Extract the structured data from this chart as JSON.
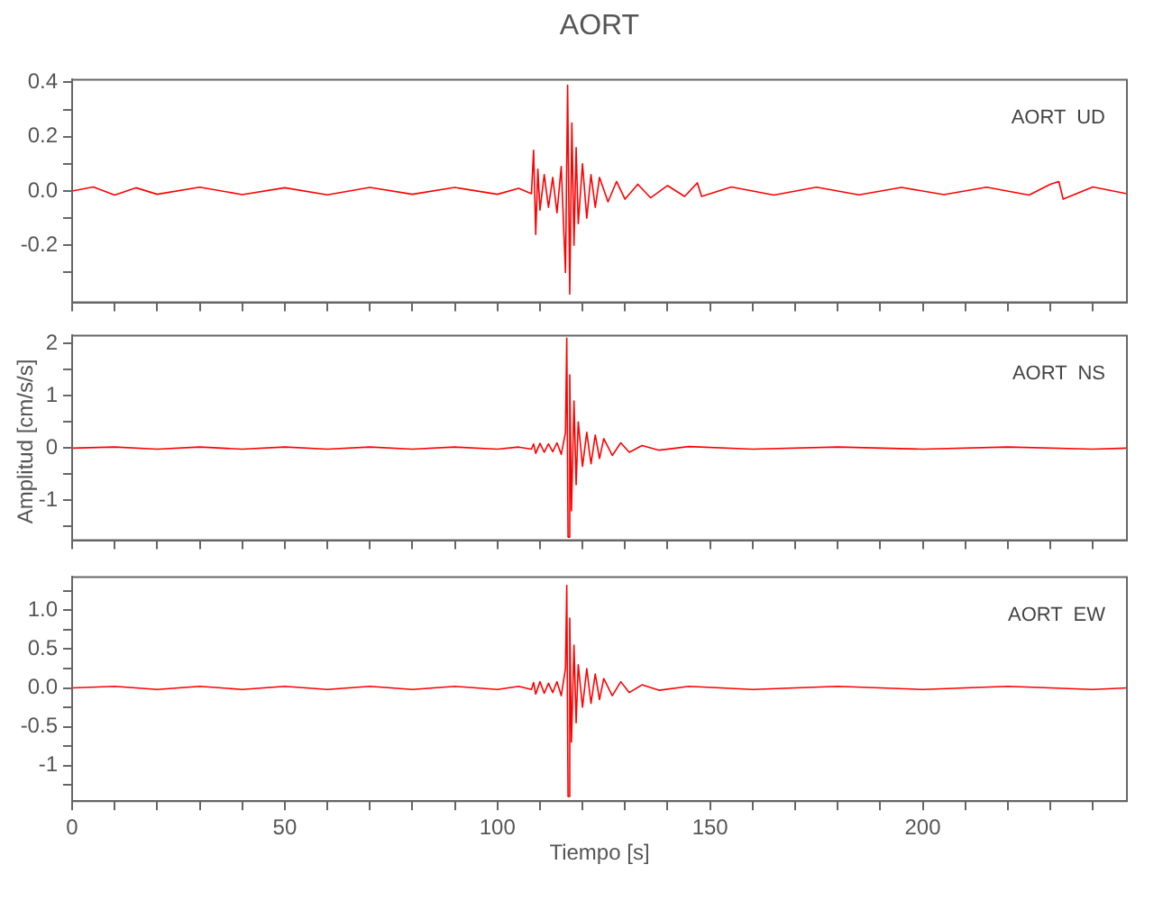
{
  "chart_data": [
    {
      "type": "line",
      "title": "AORT",
      "annotations": [
        "AORT  UD"
      ],
      "tick_labels": "y",
      "legend": false,
      "grid": false,
      "marker": "none",
      "line_style": "solid",
      "x": [
        0,
        5,
        10,
        15,
        20,
        30,
        40,
        50,
        60,
        70,
        80,
        90,
        100,
        105,
        108,
        108.5,
        109,
        109.5,
        110,
        111,
        112,
        113,
        114,
        115,
        116,
        116.5,
        117,
        117.5,
        118,
        118.5,
        119,
        120,
        121,
        122,
        123,
        124,
        126,
        128,
        130,
        133,
        136,
        140,
        144,
        147,
        148,
        155,
        165,
        175,
        185,
        195,
        205,
        215,
        225,
        230,
        232,
        233,
        240,
        248
      ],
      "series": [
        {
          "color": "#ff0000",
          "values": [
            0,
            0.015,
            -0.015,
            0.012,
            -0.012,
            0.014,
            -0.013,
            0.012,
            -0.014,
            0.013,
            -0.012,
            0.013,
            -0.012,
            0.01,
            -0.01,
            0.15,
            -0.16,
            0.08,
            -0.07,
            0.06,
            -0.06,
            0.05,
            -0.08,
            0.09,
            -0.3,
            0.39,
            -0.38,
            0.25,
            -0.2,
            0.16,
            -0.12,
            0.1,
            -0.1,
            0.06,
            -0.06,
            0.05,
            -0.04,
            0.035,
            -0.03,
            0.025,
            -0.025,
            0.02,
            -0.02,
            0.03,
            -0.02,
            0.015,
            -0.015,
            0.014,
            -0.014,
            0.013,
            -0.013,
            0.014,
            -0.015,
            0.025,
            0.035,
            -0.03,
            0.015,
            -0.01
          ]
        }
      ],
      "xlim": [
        0,
        248
      ],
      "xticks": [
        0,
        {
          "value": 10,
          "label": null
        },
        {
          "value": 20,
          "label": null
        },
        {
          "value": 30,
          "label": null
        },
        {
          "value": 40,
          "label": null
        },
        50,
        {
          "value": 60,
          "label": null
        },
        {
          "value": 70,
          "label": null
        },
        {
          "value": 80,
          "label": null
        },
        {
          "value": 90,
          "label": null
        },
        100,
        {
          "value": 110,
          "label": null
        },
        {
          "value": 120,
          "label": null
        },
        {
          "value": 130,
          "label": null
        },
        {
          "value": 140,
          "label": null
        },
        150,
        {
          "value": 160,
          "label": null
        },
        {
          "value": 170,
          "label": null
        },
        {
          "value": 180,
          "label": null
        },
        {
          "value": 190,
          "label": null
        },
        200,
        {
          "value": 210,
          "label": null
        },
        {
          "value": 220,
          "label": null
        },
        {
          "value": 230,
          "label": null
        },
        {
          "value": 240,
          "label": null
        }
      ],
      "ylim": [
        -0.41,
        0.41
      ],
      "yticks": [
        {
          "value": -0.3,
          "label": null
        },
        -0.2,
        {
          "value": -0.1,
          "label": null
        },
        {
          "value": 0,
          "label": "0.0"
        },
        {
          "value": 0.1,
          "label": null
        },
        0.2,
        {
          "value": 0.3,
          "label": null
        },
        0.4
      ]
    },
    {
      "type": "line",
      "ylabel": "Amplitud [cm/s/s]",
      "annotations": [
        "AORT  NS"
      ],
      "tick_labels": "y",
      "legend": false,
      "grid": false,
      "marker": "none",
      "line_style": "solid",
      "x": [
        0,
        10,
        20,
        30,
        40,
        50,
        60,
        70,
        80,
        90,
        100,
        105,
        108,
        108.5,
        109,
        110,
        111,
        112,
        113,
        114,
        115,
        116,
        116.3,
        116.6,
        117,
        117.4,
        118,
        118.5,
        119,
        120,
        121,
        122,
        123,
        124,
        125,
        127,
        129,
        131,
        134,
        138,
        145,
        160,
        180,
        200,
        220,
        240,
        248
      ],
      "series": [
        {
          "color": "#ff0000",
          "values": [
            0,
            0.02,
            -0.02,
            0.02,
            -0.02,
            0.02,
            -0.02,
            0.02,
            -0.02,
            0.02,
            -0.02,
            0.02,
            -0.02,
            0.08,
            -0.1,
            0.09,
            -0.08,
            0.08,
            -0.07,
            0.1,
            -0.12,
            0.3,
            2.1,
            -1.7,
            1.4,
            -1.2,
            0.9,
            -0.7,
            0.5,
            -0.35,
            0.3,
            -0.3,
            0.25,
            -0.2,
            0.18,
            -0.14,
            0.1,
            -0.08,
            0.05,
            -0.04,
            0.03,
            -0.02,
            0.02,
            -0.02,
            0.02,
            -0.02,
            0
          ]
        }
      ],
      "xlim": [
        0,
        248
      ],
      "xticks": [
        0,
        {
          "value": 10,
          "label": null
        },
        {
          "value": 20,
          "label": null
        },
        {
          "value": 30,
          "label": null
        },
        {
          "value": 40,
          "label": null
        },
        50,
        {
          "value": 60,
          "label": null
        },
        {
          "value": 70,
          "label": null
        },
        {
          "value": 80,
          "label": null
        },
        {
          "value": 90,
          "label": null
        },
        100,
        {
          "value": 110,
          "label": null
        },
        {
          "value": 120,
          "label": null
        },
        {
          "value": 130,
          "label": null
        },
        {
          "value": 140,
          "label": null
        },
        150,
        {
          "value": 160,
          "label": null
        },
        {
          "value": 170,
          "label": null
        },
        {
          "value": 180,
          "label": null
        },
        {
          "value": 190,
          "label": null
        },
        200,
        {
          "value": 210,
          "label": null
        },
        {
          "value": 220,
          "label": null
        },
        {
          "value": 230,
          "label": null
        },
        {
          "value": 240,
          "label": null
        }
      ],
      "ylim": [
        -1.76,
        2.15
      ],
      "yticks": [
        {
          "value": -1.5,
          "label": null
        },
        -1,
        {
          "value": -0.5,
          "label": null
        },
        0,
        {
          "value": 0.5,
          "label": null
        },
        1,
        {
          "value": 1.5,
          "label": null
        },
        2
      ]
    },
    {
      "type": "line",
      "xlabel": "Tiempo [s]",
      "annotations": [
        "AORT  EW"
      ],
      "legend": false,
      "grid": false,
      "marker": "none",
      "line_style": "solid",
      "x": [
        0,
        10,
        20,
        30,
        40,
        50,
        60,
        70,
        80,
        90,
        100,
        105,
        108,
        108.5,
        109,
        110,
        111,
        112,
        113,
        114,
        115,
        116,
        116.3,
        116.6,
        117,
        117.4,
        118,
        118.5,
        119,
        120,
        121,
        122,
        123,
        124,
        125,
        127,
        129,
        131,
        134,
        138,
        145,
        160,
        180,
        200,
        220,
        240,
        248
      ],
      "series": [
        {
          "color": "#ff0000",
          "values": [
            0,
            0.02,
            -0.02,
            0.02,
            -0.02,
            0.02,
            -0.02,
            0.02,
            -0.02,
            0.02,
            -0.02,
            0.02,
            -0.02,
            0.07,
            -0.08,
            0.08,
            -0.07,
            0.06,
            -0.06,
            0.08,
            -0.1,
            0.25,
            1.32,
            -1.4,
            0.9,
            -0.7,
            0.55,
            -0.45,
            0.3,
            -0.25,
            0.25,
            -0.2,
            0.18,
            -0.15,
            0.12,
            -0.1,
            0.08,
            -0.06,
            0.04,
            -0.03,
            0.02,
            -0.02,
            0.02,
            -0.02,
            0.02,
            -0.02,
            0
          ]
        }
      ],
      "xlim": [
        0,
        248
      ],
      "xticks": [
        0,
        {
          "value": 10,
          "label": null
        },
        {
          "value": 20,
          "label": null
        },
        {
          "value": 30,
          "label": null
        },
        {
          "value": 40,
          "label": null
        },
        50,
        {
          "value": 60,
          "label": null
        },
        {
          "value": 70,
          "label": null
        },
        {
          "value": 80,
          "label": null
        },
        {
          "value": 90,
          "label": null
        },
        100,
        {
          "value": 110,
          "label": null
        },
        {
          "value": 120,
          "label": null
        },
        {
          "value": 130,
          "label": null
        },
        {
          "value": 140,
          "label": null
        },
        150,
        {
          "value": 160,
          "label": null
        },
        {
          "value": 170,
          "label": null
        },
        {
          "value": 180,
          "label": null
        },
        {
          "value": 190,
          "label": null
        },
        200,
        {
          "value": 210,
          "label": null
        },
        {
          "value": 220,
          "label": null
        },
        {
          "value": 230,
          "label": null
        },
        {
          "value": 240,
          "label": null
        }
      ],
      "ylim": [
        -1.46,
        1.43
      ],
      "yticks": [
        {
          "value": -1.25,
          "label": null
        },
        -1,
        {
          "value": -0.75,
          "label": null
        },
        -0.5,
        {
          "value": -0.25,
          "label": null
        },
        {
          "value": 0,
          "label": "0.0"
        },
        {
          "value": 0.25,
          "label": null
        },
        0.5,
        {
          "value": 0.75,
          "label": null
        },
        {
          "value": 1,
          "label": "1.0"
        },
        {
          "value": 1.25,
          "label": null
        }
      ]
    }
  ]
}
